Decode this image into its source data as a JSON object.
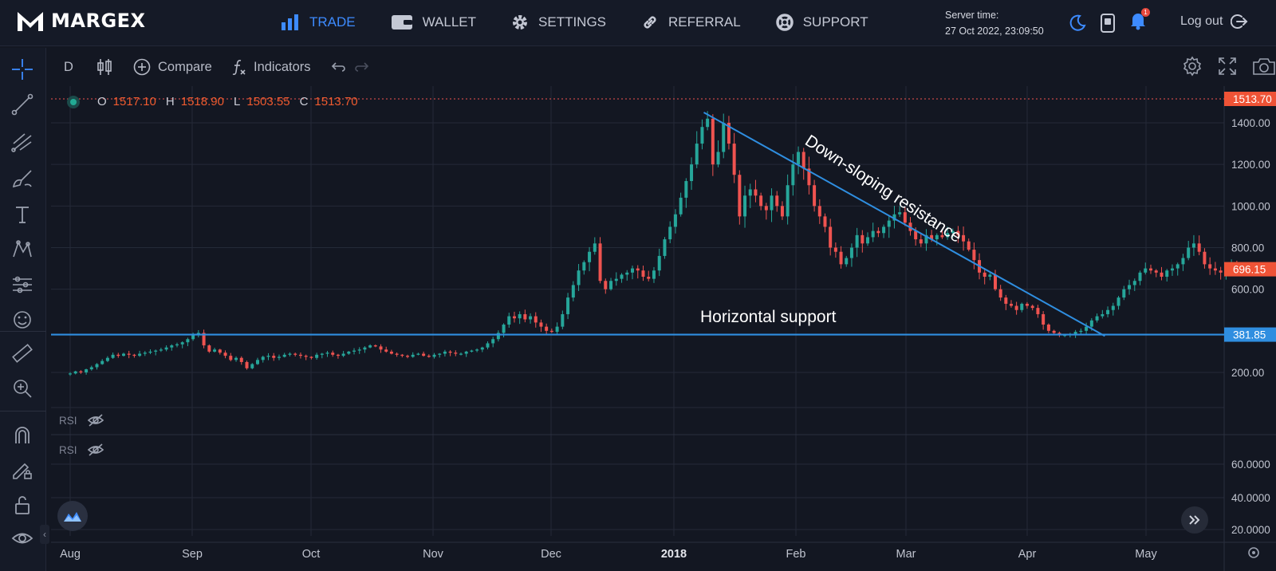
{
  "brand": {
    "name": "MARGEX"
  },
  "nav": [
    {
      "label": "TRADE",
      "icon": "bar-chart-icon",
      "active": true
    },
    {
      "label": "WALLET",
      "icon": "wallet-icon",
      "active": false
    },
    {
      "label": "SETTINGS",
      "icon": "gear-icon",
      "active": false
    },
    {
      "label": "REFERRAL",
      "icon": "link-icon",
      "active": false
    },
    {
      "label": "SUPPORT",
      "icon": "lifebuoy-icon",
      "active": false
    }
  ],
  "server": {
    "label": "Server time:",
    "value": "27 Oct 2022, 23:09:50"
  },
  "notifications": {
    "count": "1"
  },
  "logout": {
    "label": "Log out"
  },
  "chart_toolbar": {
    "interval": "D",
    "compare_label": "Compare",
    "indicators_label": "Indicators"
  },
  "ohlc": {
    "o_key": "O",
    "o": "1517.10",
    "h_key": "H",
    "h": "1518.90",
    "l_key": "L",
    "l": "1503.55",
    "c_key": "C",
    "c": "1513.70"
  },
  "indicators": [
    {
      "label": "RSI"
    },
    {
      "label": "RSI"
    }
  ],
  "colors": {
    "up": "#26a69a",
    "down": "#ef5350",
    "accent": "#3d8bff",
    "trendline": "#2f8ee0"
  },
  "chart_data": {
    "type": "candlestick",
    "x_ticks": [
      "Aug",
      "Sep",
      "Oct",
      "Nov",
      "Dec",
      "2018",
      "Feb",
      "Mar",
      "Apr",
      "May"
    ],
    "y_ticks": [
      "1400.00",
      "1200.00",
      "1000.00",
      "800.00",
      "600.00",
      "200.00"
    ],
    "y_range": [
      0,
      1600
    ],
    "rsi_ticks": [
      "60.0000",
      "40.0000",
      "20.0000"
    ],
    "price_labels": {
      "last_high": {
        "text": "1513.70",
        "value": 1513.7
      },
      "current": {
        "text": "696.15",
        "value": 696.15
      },
      "support": {
        "text": "381.85",
        "value": 381.85
      }
    },
    "annotations": {
      "resistance": "Down-sloping resistance",
      "support": "Horizontal support"
    },
    "trendlines": [
      {
        "name": "resistance",
        "from": [
          "2018-01-09",
          1450
        ],
        "to": [
          "2018-04-19",
          375
        ]
      },
      {
        "name": "support",
        "value": 381.85
      }
    ],
    "closes": [
      195,
      205,
      200,
      215,
      225,
      240,
      255,
      270,
      285,
      280,
      290,
      285,
      280,
      290,
      295,
      300,
      305,
      310,
      320,
      330,
      335,
      345,
      360,
      380,
      390,
      330,
      300,
      310,
      295,
      280,
      260,
      270,
      250,
      220,
      240,
      260,
      275,
      280,
      270,
      275,
      285,
      290,
      285,
      280,
      275,
      270,
      285,
      290,
      295,
      285,
      280,
      290,
      300,
      305,
      310,
      320,
      330,
      325,
      310,
      300,
      290,
      285,
      280,
      275,
      285,
      290,
      280,
      275,
      285,
      290,
      300,
      295,
      290,
      290,
      300,
      305,
      310,
      320,
      340,
      360,
      390,
      430,
      470,
      460,
      480,
      455,
      470,
      440,
      420,
      400,
      395,
      420,
      480,
      560,
      620,
      690,
      730,
      780,
      820,
      640,
      600,
      640,
      650,
      670,
      680,
      700,
      690,
      660,
      650,
      690,
      760,
      840,
      900,
      960,
      1040,
      1120,
      1200,
      1300,
      1380,
      1420,
      1200,
      1260,
      1400,
      1300,
      1150,
      950,
      1050,
      1080,
      1050,
      1000,
      980,
      1050,
      1000,
      950,
      1100,
      1200,
      1260,
      1180,
      1100,
      1000,
      950,
      900,
      800,
      780,
      720,
      750,
      800,
      860,
      820,
      850,
      880,
      870,
      900,
      930,
      960,
      970,
      920,
      880,
      840,
      820,
      860,
      840,
      860,
      850,
      870,
      880,
      860,
      830,
      790,
      740,
      680,
      660,
      670,
      600,
      560,
      530,
      520,
      500,
      530,
      520,
      510,
      480,
      430,
      400,
      390,
      380,
      380,
      385,
      395,
      400,
      420,
      450,
      470,
      480,
      500,
      520,
      560,
      600,
      620,
      640,
      680,
      700,
      690,
      680,
      660,
      690,
      700,
      720,
      750,
      800,
      820,
      780,
      720,
      700,
      690,
      680,
      700,
      720,
      710,
      690,
      700,
      696
    ]
  }
}
